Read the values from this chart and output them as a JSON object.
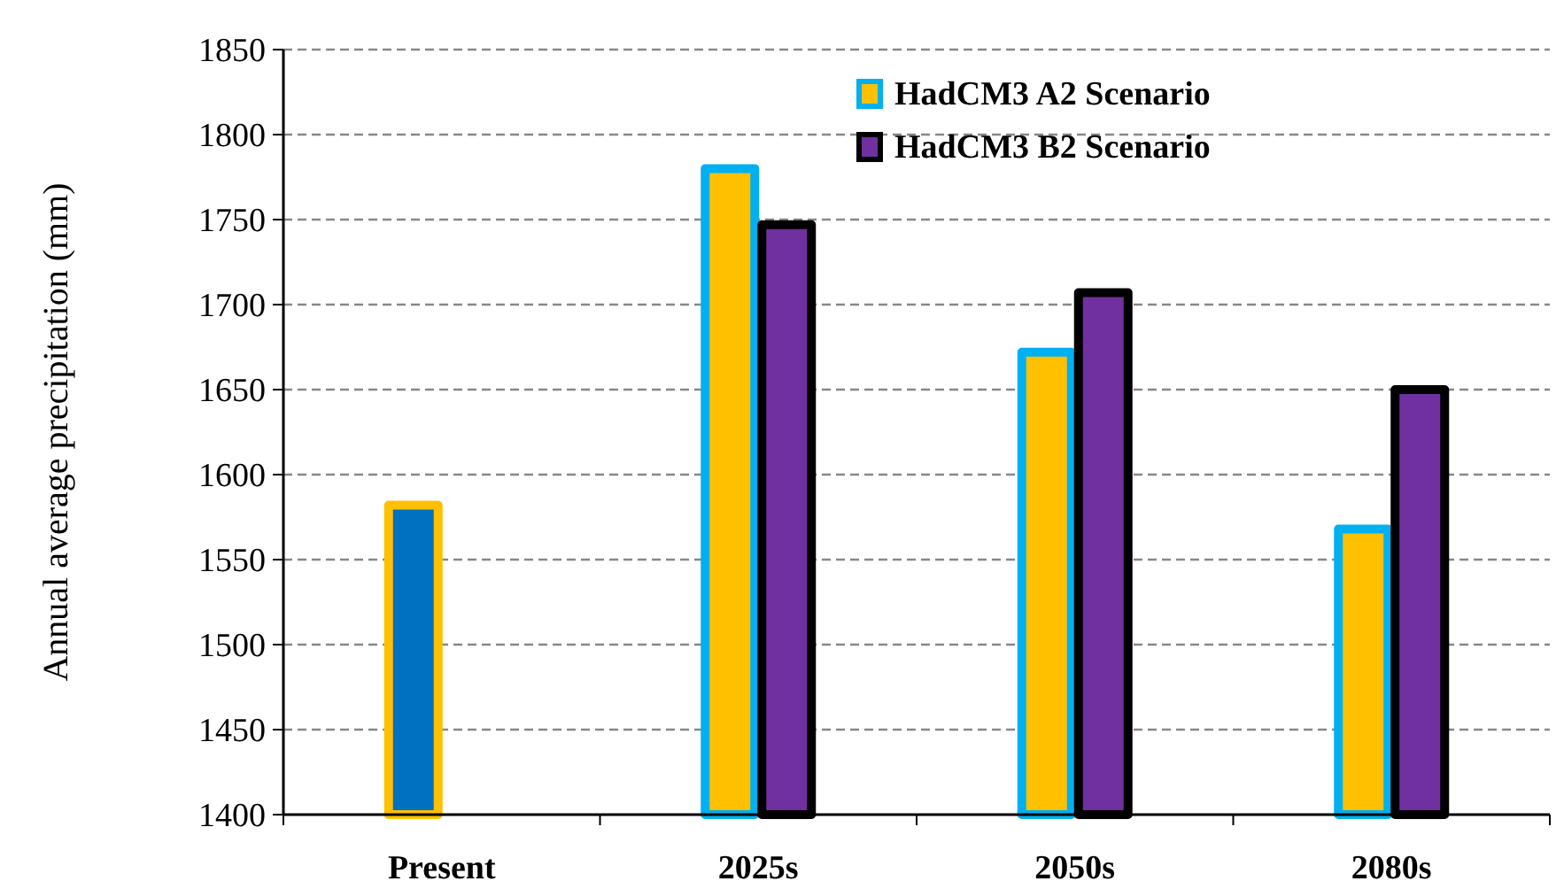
{
  "chart_data": {
    "type": "bar",
    "ylabel": "Annual average precipitation (mm)",
    "categories": [
      "Present",
      "2025s",
      "2050s",
      "2080s"
    ],
    "series": [
      {
        "name": "HadCM3 A2 Scenario",
        "color": "#ffc000",
        "colors": [
          "#0070c0",
          "#ffc000",
          "#ffc000",
          "#ffc000"
        ],
        "values": [
          1582,
          1780,
          1672,
          1568
        ]
      },
      {
        "name": "HadCM3 B2 Scenario",
        "color": "#7030a0",
        "values": [
          1400,
          1747,
          1707,
          1650
        ]
      }
    ],
    "ylim": [
      1400,
      1850
    ],
    "yticks": [
      1400,
      1450,
      1500,
      1550,
      1600,
      1650,
      1700,
      1750,
      1800,
      1850
    ],
    "grid": "y",
    "legend": "top right"
  }
}
